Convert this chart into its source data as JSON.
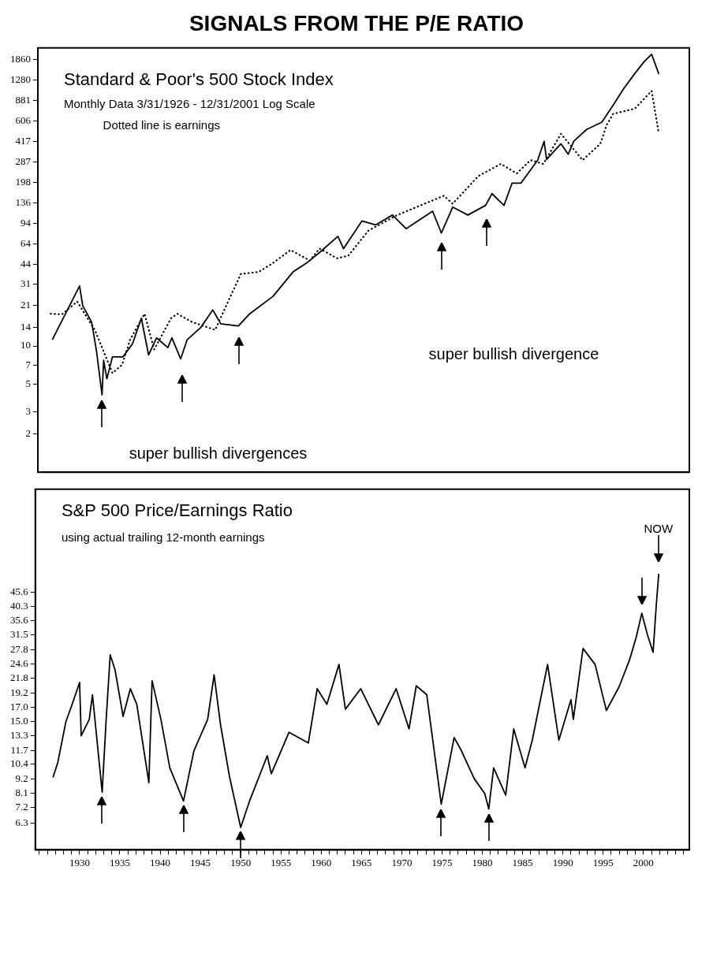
{
  "chart_data": [
    {
      "type": "line",
      "title": "SIGNALS FROM THE P/E RATIO",
      "log": true,
      "marker": "none",
      "tick_labels": "y",
      "xlim": [
        1924.5,
        2005.7
      ],
      "ylim": [
        1,
        2300
      ],
      "yticks": [
        1860,
        1280,
        881,
        606,
        417,
        287,
        198,
        136,
        94,
        64,
        44,
        31,
        21,
        14,
        10,
        7,
        5,
        3,
        2
      ],
      "series": [
        {
          "color": "#000000",
          "line_style": "solid",
          "x": [
            1926.3,
            1929.7,
            1930.1,
            1931.2,
            1931.8,
            1932.5,
            1932.7,
            1933.1,
            1933.8,
            1935.1,
            1936.3,
            1937.4,
            1938.3,
            1939.3,
            1940.7,
            1941.2,
            1942.3,
            1943.1,
            1944.8,
            1946.3,
            1947.3,
            1949.5,
            1950.9,
            1953.8,
            1956.3,
            1958.1,
            1959.6,
            1961.9,
            1962.6,
            1964.9,
            1966.6,
            1968.7,
            1970.4,
            1973.7,
            1974.8,
            1976.2,
            1978.1,
            1980.3,
            1981.1,
            1982.6,
            1983.6,
            1984.7,
            1986.8,
            1987.6,
            1987.9,
            1989.7,
            1990.6,
            1991.3,
            1992.9,
            1994.8,
            1996.2,
            1997.5,
            1998.9,
            2000.1,
            2001.0,
            2001.9
          ],
          "values": [
            11.2,
            29.9,
            20.8,
            15.5,
            9.2,
            4.1,
            7.7,
            5.5,
            8.2,
            8.2,
            10.4,
            16.6,
            8.5,
            11.6,
            9.7,
            11.6,
            7.9,
            11.2,
            14,
            19.3,
            15,
            14.4,
            18,
            24.7,
            38.6,
            46,
            55,
            74,
            59,
            98,
            91,
            109,
            85,
            117,
            78.5,
            126,
            109,
            130,
            161,
            130,
            195,
            195,
            297,
            418,
            300,
            400,
            330,
            420,
            520,
            594,
            810,
            1090,
            1440,
            1800,
            2050,
            1430
          ]
        },
        {
          "color": "#000000",
          "line_style": "dotted",
          "x": [
            1926.1,
            1927.5,
            1929.4,
            1931.6,
            1933.8,
            1935.0,
            1936.0,
            1937.8,
            1939.0,
            1941.1,
            1941.9,
            1943.7,
            1946.6,
            1948.4,
            1949.8,
            1952.0,
            1953.6,
            1956.0,
            1958.4,
            1959.6,
            1961.8,
            1963.2,
            1965.7,
            1969.3,
            1975.1,
            1976.2,
            1979.4,
            1982.2,
            1984.2,
            1985.9,
            1987.5,
            1989.7,
            1992.4,
            1994.6,
            1995.4,
            1996.2,
            1998.9,
            2001.0,
            2001.9
          ],
          "values": [
            18,
            17.8,
            22.5,
            13.4,
            6.1,
            7.1,
            11.2,
            18,
            9.4,
            16.6,
            18,
            15.5,
            13.4,
            23.9,
            37.2,
            38.6,
            44.5,
            57.6,
            47.6,
            59.2,
            49.5,
            52,
            82,
            109,
            155,
            134,
            222,
            277,
            233,
            297,
            277,
            480,
            297,
            400,
            565,
            690,
            760,
            1050,
            480
          ]
        }
      ],
      "annotations": [
        "Standard & Poor's 500 Stock Index",
        "Monthly Data 3/31/1926 - 12/31/2001 Log Scale",
        "Dotted line is earnings",
        "super bullish divergences",
        "super bullish divergence"
      ]
    },
    {
      "type": "line",
      "log": true,
      "marker": "none",
      "xlim": [
        1924.5,
        2005.7
      ],
      "xticks": [
        {
          "value": 1925,
          "label": null
        },
        {
          "value": 1926,
          "label": null
        },
        {
          "value": 1927,
          "label": null
        },
        {
          "value": 1928,
          "label": null
        },
        {
          "value": 1929,
          "label": null
        },
        1930,
        {
          "value": 1931,
          "label": null
        },
        {
          "value": 1932,
          "label": null
        },
        {
          "value": 1933,
          "label": null
        },
        {
          "value": 1934,
          "label": null
        },
        1935,
        {
          "value": 1936,
          "label": null
        },
        {
          "value": 1937,
          "label": null
        },
        {
          "value": 1938,
          "label": null
        },
        {
          "value": 1939,
          "label": null
        },
        1940,
        {
          "value": 1941,
          "label": null
        },
        {
          "value": 1942,
          "label": null
        },
        {
          "value": 1943,
          "label": null
        },
        {
          "value": 1944,
          "label": null
        },
        1945,
        {
          "value": 1946,
          "label": null
        },
        {
          "value": 1947,
          "label": null
        },
        {
          "value": 1948,
          "label": null
        },
        {
          "value": 1949,
          "label": null
        },
        1950,
        {
          "value": 1951,
          "label": null
        },
        {
          "value": 1952,
          "label": null
        },
        {
          "value": 1953,
          "label": null
        },
        {
          "value": 1954,
          "label": null
        },
        1955,
        {
          "value": 1956,
          "label": null
        },
        {
          "value": 1957,
          "label": null
        },
        {
          "value": 1958,
          "label": null
        },
        {
          "value": 1959,
          "label": null
        },
        1960,
        {
          "value": 1961,
          "label": null
        },
        {
          "value": 1962,
          "label": null
        },
        {
          "value": 1963,
          "label": null
        },
        {
          "value": 1964,
          "label": null
        },
        1965,
        {
          "value": 1966,
          "label": null
        },
        {
          "value": 1967,
          "label": null
        },
        {
          "value": 1968,
          "label": null
        },
        {
          "value": 1969,
          "label": null
        },
        1970,
        {
          "value": 1971,
          "label": null
        },
        {
          "value": 1972,
          "label": null
        },
        {
          "value": 1973,
          "label": null
        },
        {
          "value": 1974,
          "label": null
        },
        1975,
        {
          "value": 1976,
          "label": null
        },
        {
          "value": 1977,
          "label": null
        },
        {
          "value": 1978,
          "label": null
        },
        {
          "value": 1979,
          "label": null
        },
        1980,
        {
          "value": 1981,
          "label": null
        },
        {
          "value": 1982,
          "label": null
        },
        {
          "value": 1983,
          "label": null
        },
        {
          "value": 1984,
          "label": null
        },
        1985,
        {
          "value": 1986,
          "label": null
        },
        {
          "value": 1987,
          "label": null
        },
        {
          "value": 1988,
          "label": null
        },
        {
          "value": 1989,
          "label": null
        },
        1990,
        {
          "value": 1991,
          "label": null
        },
        {
          "value": 1992,
          "label": null
        },
        {
          "value": 1993,
          "label": null
        },
        {
          "value": 1994,
          "label": null
        },
        1995,
        {
          "value": 1996,
          "label": null
        },
        {
          "value": 1997,
          "label": null
        },
        {
          "value": 1998,
          "label": null
        },
        {
          "value": 1999,
          "label": null
        },
        2000,
        {
          "value": 2001,
          "label": null
        },
        {
          "value": 2002,
          "label": null
        },
        {
          "value": 2003,
          "label": null
        },
        {
          "value": 2004,
          "label": null
        },
        {
          "value": 2005,
          "label": null
        }
      ],
      "ylim": [
        5,
        110
      ],
      "yticks": [
        45.6,
        40.3,
        35.6,
        31.5,
        27.8,
        24.6,
        21.8,
        19.2,
        {
          "value": 17,
          "label": "17.0"
        },
        {
          "value": 15,
          "label": "15.0"
        },
        13.3,
        11.7,
        10.4,
        9.2,
        8.1,
        7.2,
        6.3
      ],
      "series": [
        {
          "color": "#000000",
          "line_style": "solid",
          "x": [
            1926.7,
            1927.3,
            1928.3,
            1929.1,
            1930.0,
            1930.2,
            1931.2,
            1931.6,
            1932.8,
            1933.3,
            1933.8,
            1934.4,
            1935.4,
            1936.3,
            1937.1,
            1938.6,
            1939.0,
            1940.1,
            1941.2,
            1942.9,
            1944.2,
            1945.9,
            1946.7,
            1947.5,
            1948.6,
            1950.0,
            1951.1,
            1953.3,
            1953.8,
            1956.0,
            1958.4,
            1959.5,
            1960.7,
            1962.2,
            1963.0,
            1964.9,
            1967.1,
            1969.3,
            1970.9,
            1971.8,
            1973.1,
            1974.9,
            1976.5,
            1977.4,
            1979.0,
            1980.3,
            1980.8,
            1981.4,
            1982.9,
            1983.9,
            1985.3,
            1986.2,
            1988.1,
            1989.5,
            1991.0,
            1991.3,
            1992.5,
            1994.0,
            1995.4,
            1997.0,
            1998.3,
            1999.1,
            1999.8,
            2000.5,
            2001.2,
            2001.6,
            2001.9
          ],
          "values": [
            9.3,
            10.6,
            15,
            17.5,
            21,
            13.3,
            15.3,
            18.9,
            8.2,
            15.3,
            26.6,
            23.4,
            15.7,
            19.9,
            17.4,
            8.9,
            21.3,
            15.3,
            10.1,
            7.6,
            11.7,
            15.3,
            22.4,
            14.6,
            9.4,
            6.06,
            7.6,
            11.2,
            9.6,
            13.7,
            12.5,
            19.9,
            17.4,
            24.5,
            16.7,
            19.9,
            14.6,
            19.9,
            14.1,
            20.4,
            18.9,
            7.4,
            13.1,
            11.7,
            9.2,
            8.1,
            7.1,
            10.1,
            8,
            14.1,
            10.1,
            12.8,
            24.5,
            12.8,
            18.1,
            15.3,
            28.1,
            24.5,
            16.5,
            20.3,
            25.6,
            30.9,
            38,
            31.6,
            27.2,
            40.9,
            53.3
          ]
        }
      ],
      "annotations": [
        "S&P 500 Price/Earnings Ratio",
        "using actual trailing 12-month earnings",
        "NOW"
      ]
    }
  ]
}
